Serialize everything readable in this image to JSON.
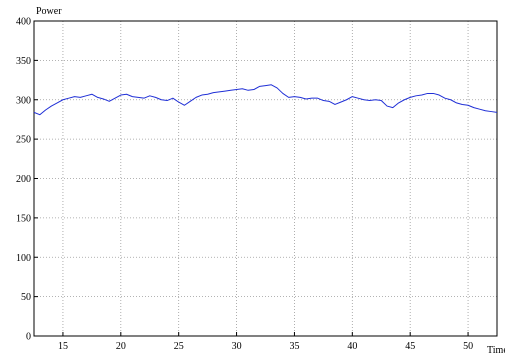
{
  "chart_data": {
    "type": "line",
    "title": "",
    "xlabel": "Time",
    "ylabel": "Power",
    "xlim": [
      12.5,
      52.5
    ],
    "ylim": [
      0,
      400
    ],
    "xticks": [
      15,
      20,
      25,
      30,
      35,
      40,
      45,
      50
    ],
    "yticks": [
      0,
      50,
      100,
      150,
      200,
      250,
      300,
      350,
      400
    ],
    "grid": true,
    "line_color": "#1f2fd6",
    "series": [
      {
        "x": [
          12.5,
          13,
          13.5,
          14,
          14.5,
          15,
          15.5,
          16,
          16.5,
          17,
          17.5,
          18,
          18.5,
          19,
          19.5,
          20,
          20.5,
          21,
          21.5,
          22,
          22.5,
          23,
          23.5,
          24,
          24.5,
          25,
          25.5,
          26,
          26.5,
          27,
          27.5,
          28,
          28.5,
          29,
          29.5,
          30,
          30.5,
          31,
          31.5,
          32,
          32.5,
          33,
          33.5,
          34,
          34.5,
          35,
          35.5,
          36,
          36.5,
          37,
          37.5,
          38,
          38.5,
          39,
          39.5,
          40,
          40.5,
          41,
          41.5,
          42,
          42.5,
          43,
          43.5,
          44,
          44.5,
          45,
          45.5,
          46,
          46.5,
          47,
          47.5,
          48,
          48.5,
          49,
          49.5,
          50,
          50.5,
          51,
          51.5,
          52,
          52.5
        ],
        "values": [
          284,
          281,
          287,
          292,
          296,
          300,
          302,
          304,
          303,
          305,
          307,
          303,
          301,
          298,
          302,
          306,
          307,
          304,
          303,
          302,
          305,
          303,
          300,
          299,
          302,
          297,
          293,
          298,
          303,
          306,
          307,
          309,
          310,
          311,
          312,
          313,
          314,
          312,
          313,
          317,
          318,
          319,
          315,
          308,
          303,
          304,
          303,
          301,
          302,
          302,
          299,
          298,
          294,
          297,
          300,
          304,
          302,
          300,
          299,
          300,
          299,
          292,
          290,
          296,
          300,
          303,
          305,
          306,
          308,
          308,
          306,
          302,
          300,
          296,
          294,
          293,
          290,
          288,
          286,
          285,
          284
        ]
      }
    ]
  },
  "labels": {
    "ylabel": "Power",
    "xlabel": "Time"
  }
}
